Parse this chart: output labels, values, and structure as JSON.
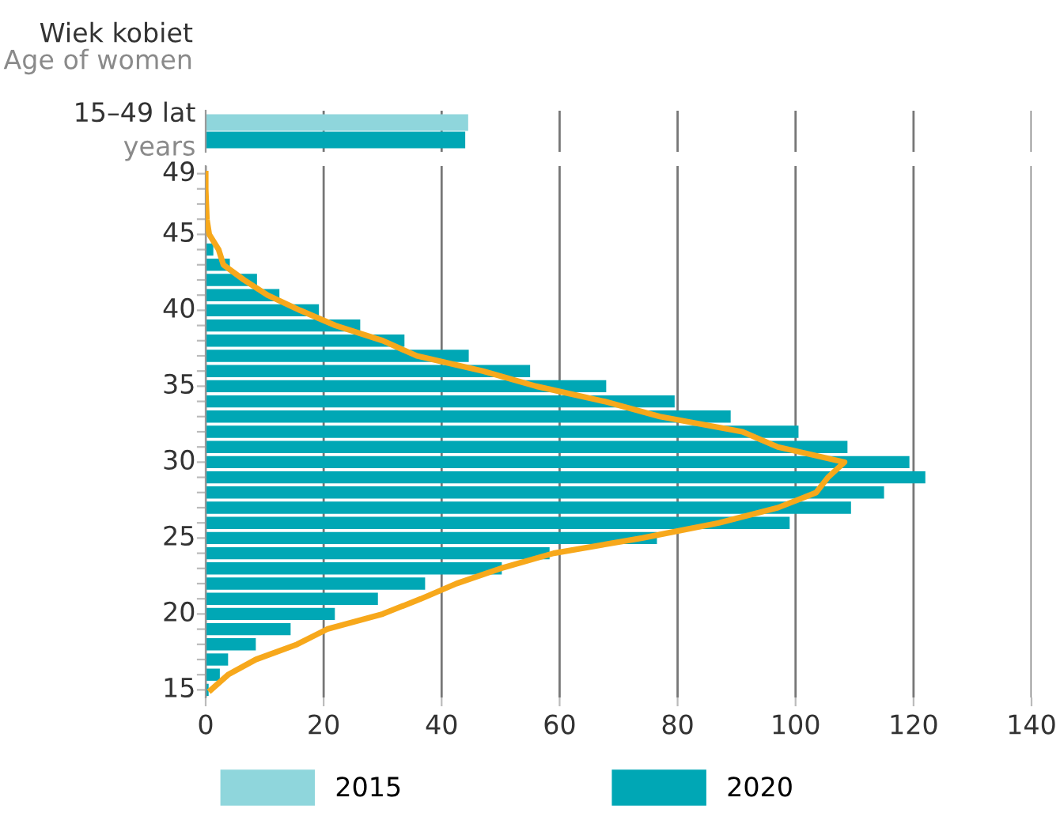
{
  "chart_data": [
    {
      "type": "bar",
      "orientation": "horizontal",
      "ylabel": "Wiek kobiet\nAge of women",
      "categories": [
        "15–49 lat\nyears"
      ],
      "xlim": [
        0,
        140
      ],
      "grid": "x",
      "tick_labels": "y",
      "legend": "bottom",
      "series": [
        {
          "name": "2015",
          "color": "#8fd6dc",
          "values": [
            44.5
          ]
        },
        {
          "name": "2020",
          "color": "#00a7b5",
          "values": [
            44
          ]
        }
      ]
    },
    {
      "type": "bar",
      "orientation": "horizontal",
      "categories": [
        "49",
        null,
        null,
        null,
        "45",
        null,
        null,
        null,
        null,
        "40",
        null,
        null,
        null,
        null,
        "35",
        null,
        null,
        null,
        null,
        "30",
        null,
        null,
        null,
        null,
        "25",
        null,
        null,
        null,
        null,
        "20",
        null,
        null,
        null,
        null,
        "15"
      ],
      "xlim": [
        0,
        140
      ],
      "xticks": [
        0,
        20,
        40,
        60,
        80,
        100,
        120,
        140
      ],
      "grid": "x",
      "series": [
        {
          "name": "2020",
          "color": "#00a7b5",
          "values": [
            0,
            null,
            null,
            null,
            null,
            1.3,
            4.1,
            8.7,
            12.5,
            19.2,
            26.2,
            33.7,
            44.6,
            55.0,
            67.9,
            79.5,
            89.0,
            100.5,
            108.8,
            119.3,
            122,
            115,
            109.4,
            99.0,
            76.5,
            58.3,
            50.2,
            37.2,
            29.2,
            21.9,
            14.4,
            8.5,
            3.8,
            2.4,
            0.5
          ]
        },
        {
          "type": "line",
          "color": "#f7a81b",
          "line_style": "solid",
          "values": [
            0,
            0,
            0.1,
            0.2,
            0.6,
            2.2,
            3,
            6.5,
            10.5,
            16,
            22,
            30,
            35.8,
            47,
            56,
            67.6,
            77,
            91,
            97,
            108.3,
            105.5,
            103.5,
            97,
            87,
            74,
            59,
            50,
            42.5,
            36.5,
            30.0,
            20.6,
            15.5,
            8.5,
            3.8,
            0.9
          ]
        }
      ]
    }
  ]
}
